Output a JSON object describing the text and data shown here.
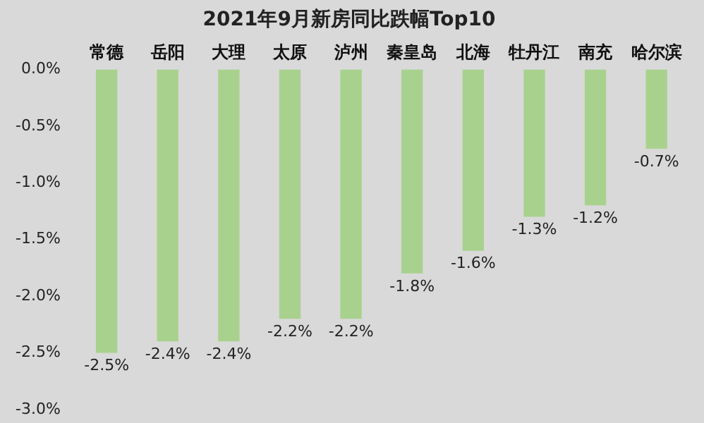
{
  "chart_data": {
    "type": "bar",
    "title": "2021年9月新房同比跌幅Top10",
    "categories": [
      "常德",
      "岳阳",
      "大理",
      "太原",
      "泸州",
      "秦皇岛",
      "北海",
      "牡丹江",
      "南充",
      "哈尔滨"
    ],
    "values": [
      -2.5,
      -2.4,
      -2.4,
      -2.2,
      -2.2,
      -1.8,
      -1.6,
      -1.3,
      -1.2,
      -0.7
    ],
    "color": "#a9d18e",
    "ylim": [
      -3.0,
      0.0
    ],
    "yticks": [
      {
        "value": 0,
        "label": "0.0%"
      },
      {
        "value": -0.5,
        "label": "-0.5%"
      },
      {
        "value": -1.0,
        "label": "-1.0%"
      },
      {
        "value": -1.5,
        "label": "-1.5%"
      },
      {
        "value": -2.0,
        "label": "-2.0%"
      },
      {
        "value": -2.5,
        "label": "-2.5%"
      },
      {
        "value": -3.0,
        "label": "-3.0%"
      }
    ],
    "value_labels": [
      "-2.5%",
      "-2.4%",
      "-2.4%",
      "-2.2%",
      "-2.2%",
      "-1.8%",
      "-1.6%",
      "-1.3%",
      "-1.2%",
      "-0.7%"
    ],
    "grid": false,
    "legend": false
  }
}
